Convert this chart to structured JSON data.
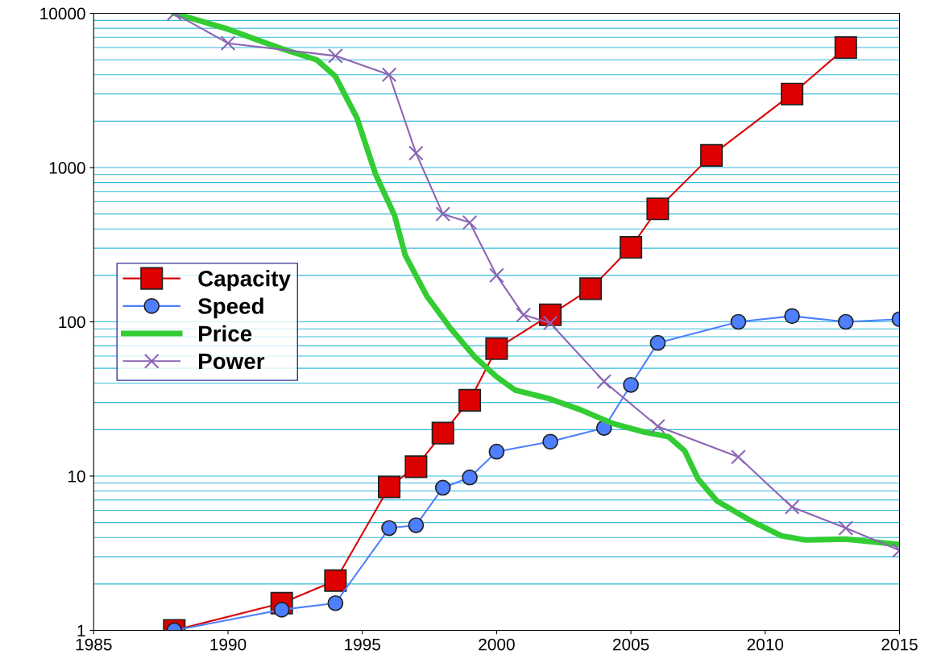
{
  "chart_data": {
    "type": "line",
    "log": "y",
    "grid": "y",
    "legend": "center left",
    "xlim": [
      1985,
      2015
    ],
    "xticks": [
      1985,
      1990,
      1995,
      2000,
      2005,
      2010,
      2015
    ],
    "ylim": [
      1,
      10000
    ],
    "yticks": [
      1,
      10,
      100,
      1000,
      10000
    ],
    "series": [
      {
        "name": "Capacity",
        "color": "#dd0000",
        "marker": "square",
        "x": [
          1988,
          1992,
          1994,
          1996,
          1997,
          1998,
          1999,
          2000,
          2002,
          2003.5,
          2005,
          2006,
          2008,
          2011,
          2013
        ],
        "values": [
          1,
          1.5,
          2.1,
          8.5,
          11.5,
          19,
          31,
          67,
          111,
          164,
          304,
          540,
          1200,
          3000,
          6000
        ]
      },
      {
        "name": "Speed",
        "color": "#4d7fff",
        "marker": "circle",
        "x": [
          1988,
          1992,
          1994,
          1996,
          1997,
          1998,
          1999,
          2000,
          2002,
          2004,
          2005,
          2006,
          2009,
          2011,
          2013,
          2015
        ],
        "values": [
          1,
          1.36,
          1.5,
          4.6,
          4.8,
          8.4,
          9.8,
          14.4,
          16.7,
          20.5,
          39,
          73,
          100,
          109,
          100,
          104
        ]
      },
      {
        "name": "Price",
        "color": "#33cc33",
        "marker": "none",
        "x": [
          1988,
          1990,
          1992,
          1993.3,
          1994,
          1994.8,
          1995.5,
          1996.2,
          1996.6,
          1997.4,
          1998.3,
          1999.2,
          2000,
          2000.7,
          2001.9,
          2003.1,
          2004.3,
          2005.5,
          2006.4,
          2007,
          2007.5,
          2008.2,
          2009.4,
          2010.6,
          2011.5,
          2013,
          2015
        ],
        "values": [
          10000,
          7900,
          5900,
          5000,
          3900,
          2100,
          900,
          490,
          270,
          147,
          90,
          59,
          44,
          36,
          32,
          27,
          22,
          19.3,
          18,
          14.6,
          9.6,
          6.9,
          5.2,
          4.1,
          3.85,
          3.9,
          3.6
        ]
      },
      {
        "name": "Power",
        "color": "#8c64b4",
        "marker": "cross",
        "x": [
          1988,
          1990,
          1994,
          1996,
          1997,
          1998,
          1999,
          2000,
          2001,
          2002,
          2004,
          2006,
          2009,
          2011,
          2013,
          2015
        ],
        "values": [
          10000,
          6400,
          5300,
          4000,
          1240,
          500,
          440,
          200,
          111,
          98,
          41,
          21,
          13.3,
          6.3,
          4.6,
          3.3
        ]
      }
    ]
  }
}
